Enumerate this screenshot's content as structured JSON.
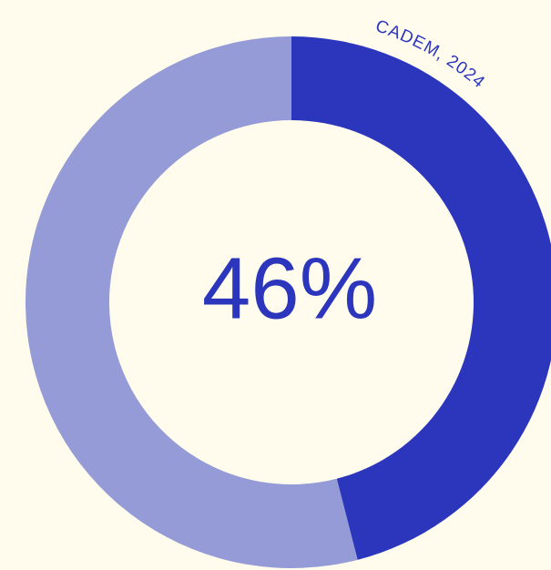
{
  "chart_data": {
    "type": "donut",
    "values": [
      46,
      54
    ],
    "value_labels": [
      "46%",
      null
    ],
    "colors": [
      "#2b36bd",
      "#959bd6"
    ],
    "source": "CADEM, 2024"
  }
}
